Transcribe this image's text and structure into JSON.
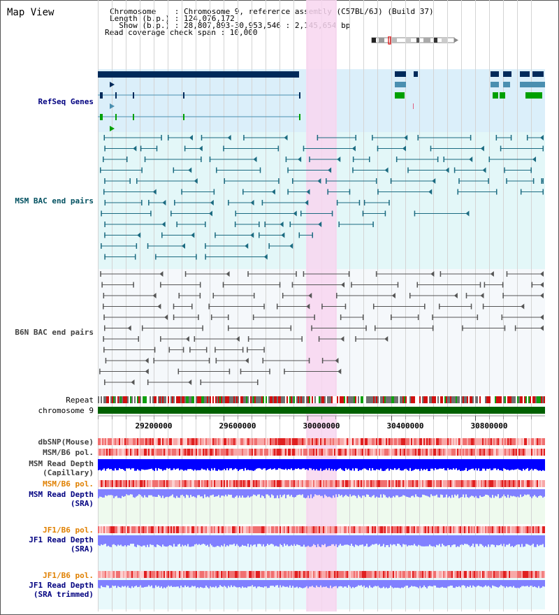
{
  "title": "Map View",
  "header": {
    "chromosome_line": "Chromosome    : Chromosome 9, reference assembly (C57BL/6J) (Build 37)",
    "length_line": "Length (b.p.) : 124,076,172",
    "show_line": "  Show (b.p.) : 28,807,893-30,953,546 : 2,145,654 bp",
    "coverage_line": "Read coverage check span : 10,000"
  },
  "tracks": {
    "refseq": "RefSeq Genes",
    "msm_bac": "MSM BAC end pairs",
    "b6n_bac": "B6N BAC end pairs",
    "repeat": "Repeat",
    "chromosome": "chromosome 9",
    "dbsnp": "dbSNP(Mouse)",
    "msm_b6_pol_1": "MSM/B6 pol.",
    "msm_depth_cap_1": "MSM Read Depth",
    "msm_depth_cap_2": "(Capillary)",
    "msm_b6_pol_2": "MSM/B6 pol.",
    "msm_depth_sra_1": "MSM Read Depth",
    "msm_depth_sra_2": "(SRA)",
    "jf1_b6_pol_1": "JF1/B6 pol.",
    "jf1_depth_sra_1": "JF1 Read Depth",
    "jf1_depth_sra_2": "(SRA)",
    "jf1_b6_pol_2": "JF1/B6 pol.",
    "jf1_depth_trim_1": "JF1 Read Depth",
    "jf1_depth_trim_2": "(SRA trimmed)"
  },
  "axis": {
    "ticks": [
      "29200000",
      "29600000",
      "30000000",
      "30400000",
      "30800000"
    ]
  },
  "colors": {
    "refseq_bg": "#dbeffa",
    "msm_bg": "#e3f7f8",
    "b6n_bg": "#f5f8fb",
    "highlight": "#f8d6f0",
    "refseq_navy": "#002a5a",
    "refseq_teal": "#4a8fb0",
    "refseq_green": "#00a000",
    "msm_line": "#1a6a80",
    "b6n_line": "#555555",
    "chrom_green": "#006000",
    "snp_red": "#f08080",
    "depth_blue": "#0000ff",
    "depth_light": "#8080ff",
    "label_blue": "#000080",
    "label_teal": "#005060",
    "label_gray": "#404040",
    "label_orange": "#e08000"
  }
}
